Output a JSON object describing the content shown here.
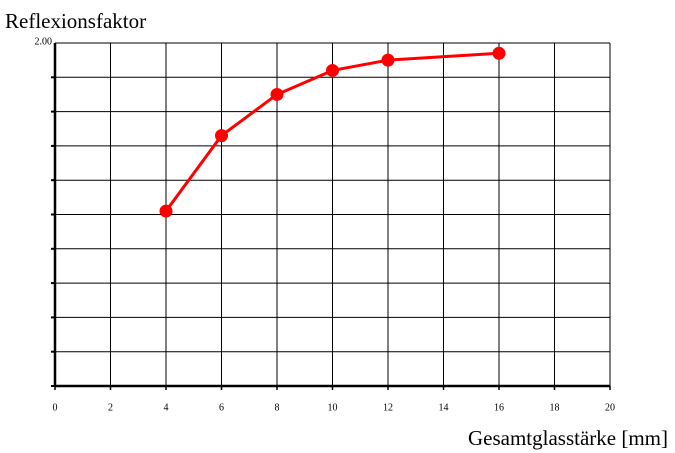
{
  "chart_data": {
    "type": "line",
    "title": "Reflexionsfaktor",
    "x_label": "Gesamtglasstärke [mm]",
    "x": [
      4,
      6,
      8,
      10,
      12,
      16
    ],
    "series": [
      {
        "name": "Reflexionsfaktor",
        "color": "#ff0000",
        "values": [
          1.51,
          1.73,
          1.85,
          1.92,
          1.95,
          1.97
        ]
      }
    ],
    "xlim": [
      0,
      20
    ],
    "xticks": [
      0,
      2,
      4,
      6,
      8,
      10,
      12,
      14,
      16,
      18,
      20
    ],
    "ylim": [
      1,
      2
    ],
    "yticks": [
      {
        "value": 2,
        "label": "2.00"
      }
    ],
    "ygrid": [
      1,
      1.1,
      1.2,
      1.3,
      1.4,
      1.5,
      1.6,
      1.7,
      1.8,
      1.9
    ],
    "grid": true
  }
}
